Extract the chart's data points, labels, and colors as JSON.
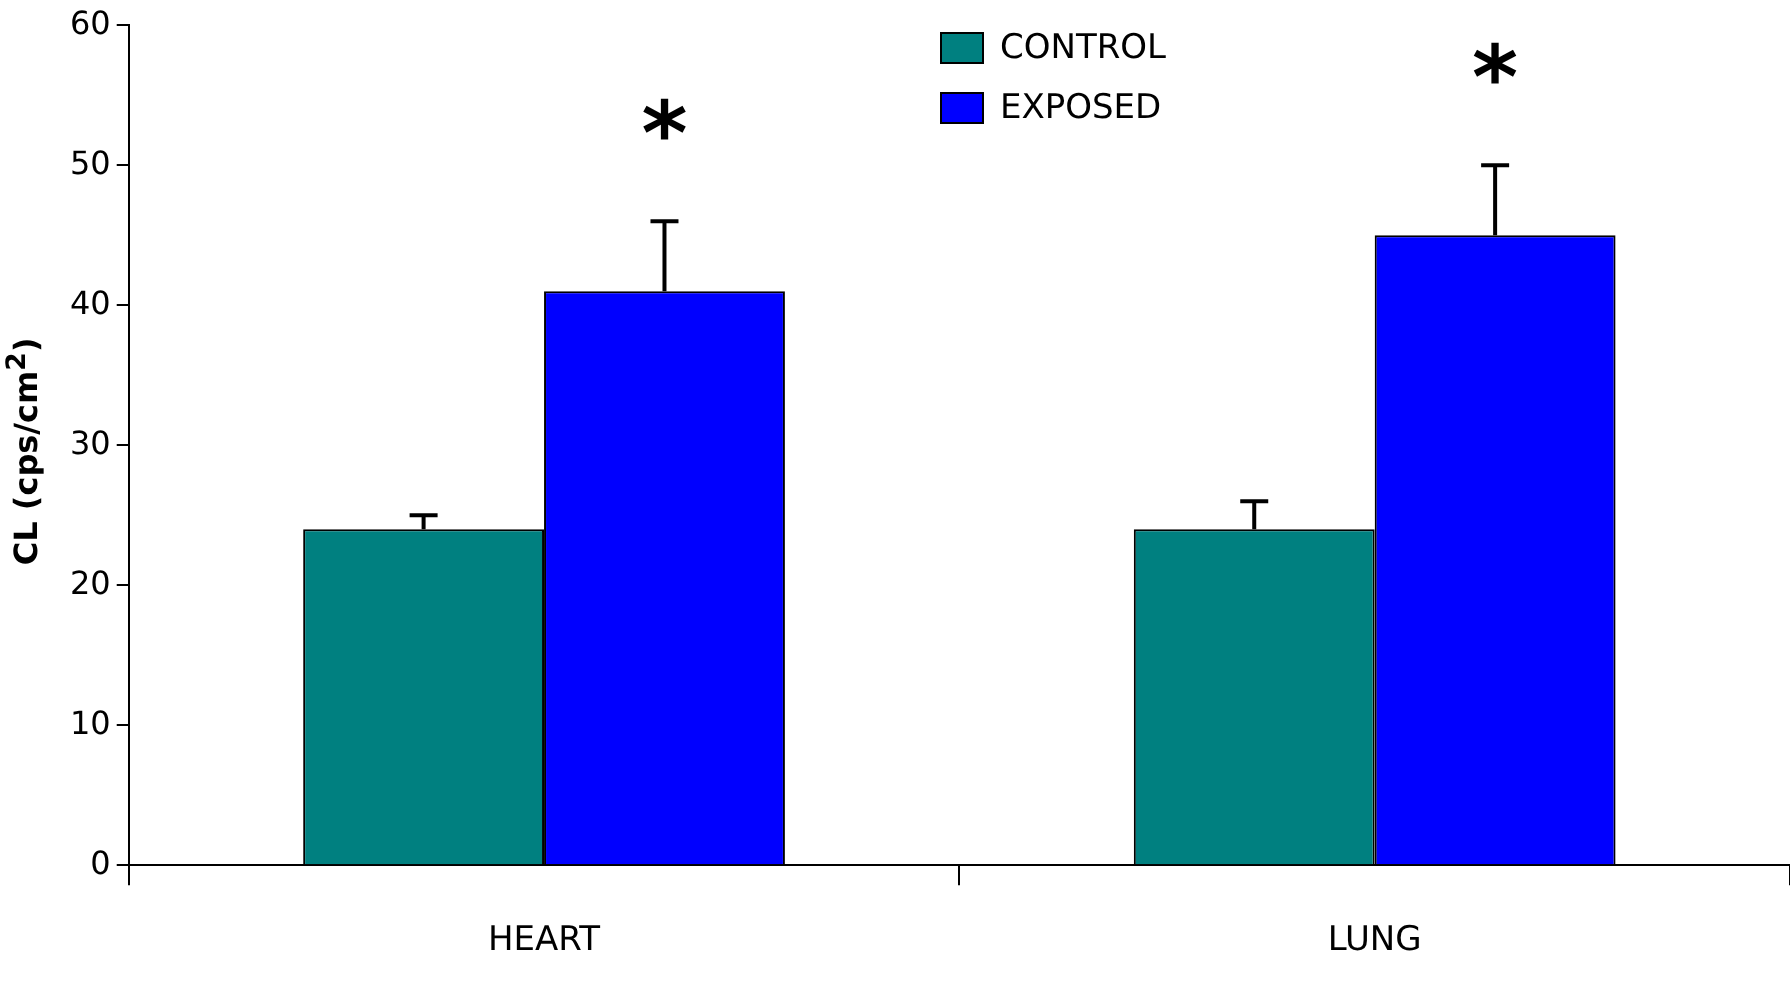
{
  "chart_data": {
    "type": "bar",
    "ylabel": "CL (cps/cm$^{2}$)",
    "categories": [
      "HEART",
      "LUNG"
    ],
    "series": [
      {
        "name": "CONTROL",
        "color": "#008080",
        "values": [
          24,
          24
        ],
        "errors": [
          [
            24,
            25
          ],
          [
            24,
            26
          ]
        ]
      },
      {
        "name": "EXPOSED",
        "color": "#0000ff",
        "values": [
          41,
          45
        ],
        "errors": [
          [
            41,
            46
          ],
          [
            45,
            50
          ]
        ]
      }
    ],
    "ylim": [
      0,
      60
    ],
    "yticks": [
      0,
      10,
      20,
      30,
      40,
      50,
      60
    ],
    "grid": false,
    "legend": "top",
    "annotations": [
      "*",
      "*"
    ]
  }
}
